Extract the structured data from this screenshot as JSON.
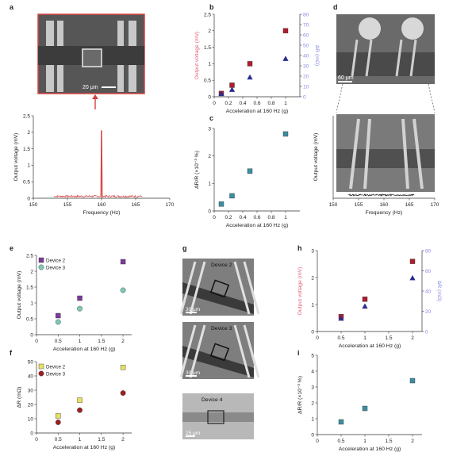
{
  "panels": {
    "a": "a",
    "b": "b",
    "c": "c",
    "d": "d",
    "e": "e",
    "f": "f",
    "g": "g",
    "h": "h",
    "i": "i"
  },
  "images": {
    "a_scale": "20 μm",
    "d_scale": "60 μm",
    "g_device2": "Device 2",
    "g_device3": "Device 3",
    "g_device4": "Device 4",
    "g_scale1": "30 μm",
    "g_scale2": "30 μm",
    "g_scale3": "25 μm"
  },
  "colors": {
    "red": "#b01c2e",
    "blue": "#2a2e8c",
    "teal": "#3a8fa0",
    "purple": "#7a3a9a",
    "green": "#7ec8b8",
    "yellow": "#e8e060",
    "darkred": "#9a2020",
    "pinklabel": "#e0607a",
    "bluelabel": "#8a8ae8"
  },
  "chart_data": [
    {
      "id": "a",
      "type": "line",
      "xlabel": "Frequency (Hz)",
      "ylabel": "Output voltage (mV)",
      "xlim": [
        150,
        170
      ],
      "ylim": [
        0,
        2.5
      ],
      "xticks": [
        150,
        155,
        160,
        165,
        170
      ],
      "yticks": [
        0,
        0.5,
        1.0,
        1.5,
        2.0,
        2.5
      ],
      "peak": {
        "x": 160,
        "y": 2.05
      },
      "noise_range": [
        153,
        166
      ]
    },
    {
      "id": "b",
      "type": "scatter",
      "xlabel": "Acceleration at 160 Hz (g)",
      "ylabel": "Output voltage (mV)",
      "ylabel2": "ΔR (mΩ)",
      "xlim": [
        0,
        1.2
      ],
      "ylim": [
        0,
        2.5
      ],
      "ylim2": [
        0,
        80
      ],
      "xticks": [
        0,
        0.2,
        0.4,
        0.6,
        0.8,
        1.0
      ],
      "yticks": [
        0,
        0.5,
        1.0,
        1.5,
        2.0,
        2.5
      ],
      "yticks2": [
        0,
        10,
        20,
        30,
        40,
        50,
        60,
        70,
        80
      ],
      "series": [
        {
          "marker": "square",
          "color": "red",
          "axis": "left",
          "x": [
            0.1,
            0.25,
            0.5,
            1.0
          ],
          "y": [
            0.1,
            0.35,
            1.0,
            2.0
          ]
        },
        {
          "marker": "triangle",
          "color": "blue",
          "axis": "right",
          "x": [
            0.1,
            0.25,
            0.5,
            1.0
          ],
          "y": [
            3,
            7,
            19,
            37
          ]
        }
      ]
    },
    {
      "id": "c",
      "type": "scatter",
      "xlabel": "Acceleration at 160 Hz (g)",
      "ylabel": "ΔR/R (×10⁻³ %)",
      "xlim": [
        0,
        1.2
      ],
      "ylim": [
        0,
        3
      ],
      "xticks": [
        0,
        0.2,
        0.4,
        0.6,
        0.8,
        1.0
      ],
      "yticks": [
        0,
        1,
        2,
        3
      ],
      "series": [
        {
          "marker": "square",
          "color": "teal",
          "x": [
            0.1,
            0.25,
            0.5,
            1.0
          ],
          "y": [
            0.25,
            0.55,
            1.45,
            2.8
          ]
        }
      ]
    },
    {
      "id": "d",
      "type": "line",
      "xlabel": "Frequency (Hz)",
      "ylabel": "Output voltage (mV)",
      "xlim": [
        150,
        170
      ],
      "xticks": [
        150,
        155,
        160,
        165,
        170
      ],
      "noise_range": [
        153,
        166
      ]
    },
    {
      "id": "e",
      "type": "scatter",
      "xlabel": "Acceleration at 160 Hz (g)",
      "ylabel": "Output voltage (mV)",
      "xlim": [
        0,
        2.2
      ],
      "ylim": [
        0,
        2.5
      ],
      "xticks": [
        0,
        0.5,
        1.0,
        1.5,
        2.0
      ],
      "yticks": [
        0,
        0.5,
        1.0,
        1.5,
        2.0,
        2.5
      ],
      "series": [
        {
          "name": "Device 2",
          "marker": "square",
          "color": "purple",
          "x": [
            0.5,
            1.0,
            2.0
          ],
          "y": [
            0.6,
            1.15,
            2.3
          ]
        },
        {
          "name": "Device 3",
          "marker": "circle",
          "color": "green",
          "x": [
            0.5,
            1.0,
            2.0
          ],
          "y": [
            0.4,
            0.82,
            1.4
          ]
        }
      ]
    },
    {
      "id": "f",
      "type": "scatter",
      "xlabel": "Acceleration at 160 Hz (g)",
      "ylabel": "ΔR (mΩ)",
      "xlim": [
        0,
        2.2
      ],
      "ylim": [
        0,
        50
      ],
      "xticks": [
        0,
        0.5,
        1.0,
        1.5,
        2.0
      ],
      "yticks": [
        0,
        10,
        20,
        30,
        40,
        50
      ],
      "series": [
        {
          "name": "Device 2",
          "marker": "square",
          "color": "yellow",
          "x": [
            0.5,
            1.0,
            2.0
          ],
          "y": [
            12,
            23,
            46
          ]
        },
        {
          "name": "Device 3",
          "marker": "circle",
          "color": "darkred",
          "x": [
            0.5,
            1.0,
            2.0
          ],
          "y": [
            7.5,
            16,
            28
          ]
        }
      ]
    },
    {
      "id": "h",
      "type": "scatter",
      "xlabel": "Acceleration at 160 Hz (g)",
      "ylabel": "Output voltage (mV)",
      "ylabel2": "ΔR (mΩ)",
      "xlim": [
        0,
        2.2
      ],
      "ylim": [
        0,
        3
      ],
      "ylim2": [
        0,
        80
      ],
      "xticks": [
        0,
        0.5,
        1.0,
        1.5,
        2.0
      ],
      "yticks": [
        0,
        1,
        2,
        3
      ],
      "yticks2": [
        0,
        20,
        40,
        60,
        80
      ],
      "series": [
        {
          "marker": "square",
          "color": "red",
          "axis": "left",
          "x": [
            0.5,
            1.0,
            2.0
          ],
          "y": [
            0.55,
            1.2,
            2.6
          ]
        },
        {
          "marker": "triangle",
          "color": "blue",
          "axis": "right",
          "x": [
            0.5,
            1.0,
            2.0
          ],
          "y": [
            13,
            25,
            53
          ]
        }
      ]
    },
    {
      "id": "i",
      "type": "scatter",
      "xlabel": "Acceleration at 160 Hz (g)",
      "ylabel": "ΔR/R (×10⁻³ %)",
      "xlim": [
        0,
        2.2
      ],
      "ylim": [
        0,
        5
      ],
      "xticks": [
        0,
        0.5,
        1.0,
        1.5,
        2.0
      ],
      "yticks": [
        0,
        1,
        2,
        3,
        4,
        5
      ],
      "series": [
        {
          "marker": "square",
          "color": "teal",
          "x": [
            0.5,
            1.0,
            2.0
          ],
          "y": [
            0.8,
            1.65,
            3.4
          ]
        }
      ]
    }
  ]
}
